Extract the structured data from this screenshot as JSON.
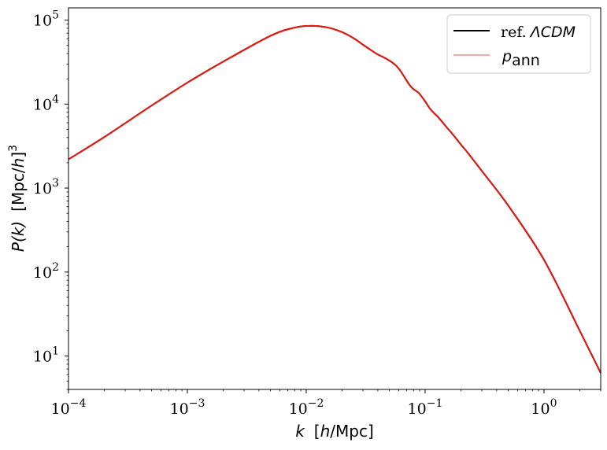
{
  "chart_data": {
    "type": "line",
    "title": "",
    "xlabel": {
      "var": "k",
      "unit": "[h/Mpc]",
      "unit_pre": "[",
      "unit_h": "h",
      "unit_post": "/Mpc]"
    },
    "ylabel": {
      "var": "P(k)",
      "unit_pre": "[Mpc/",
      "unit_h": "h",
      "unit_post": "]",
      "unit_exp": "3"
    },
    "xscale": "log",
    "yscale": "log",
    "xlim": [
      0.0001,
      3.0
    ],
    "ylim": [
      4.0,
      140000
    ],
    "grid": false,
    "legend_position": "top-right",
    "x_ticks": [
      {
        "value": 0.0001,
        "base": "10",
        "exp": "−4"
      },
      {
        "value": 0.001,
        "base": "10",
        "exp": "−3"
      },
      {
        "value": 0.01,
        "base": "10",
        "exp": "−2"
      },
      {
        "value": 0.1,
        "base": "10",
        "exp": "−1"
      },
      {
        "value": 1,
        "base": "10",
        "exp": "0"
      }
    ],
    "y_ticks": [
      {
        "value": 10,
        "base": "10",
        "exp": "1"
      },
      {
        "value": 100,
        "base": "10",
        "exp": "2"
      },
      {
        "value": 1000,
        "base": "10",
        "exp": "3"
      },
      {
        "value": 10000,
        "base": "10",
        "exp": "4"
      },
      {
        "value": 100000,
        "base": "10",
        "exp": "5"
      }
    ],
    "series": [
      {
        "name": "ref. ΛCDM",
        "name_prefix": "ref.",
        "name_math": "ΛCDM",
        "color": "#000000",
        "x": [
          0.0001,
          0.0002,
          0.0005,
          0.001,
          0.002,
          0.005,
          0.008,
          0.011,
          0.015,
          0.02,
          0.025,
          0.03,
          0.035,
          0.04,
          0.045,
          0.05,
          0.055,
          0.06,
          0.065,
          0.07,
          0.075,
          0.08,
          0.085,
          0.09,
          0.1,
          0.11,
          0.12,
          0.13,
          0.15,
          0.17,
          0.2,
          0.23,
          0.3,
          0.5,
          1,
          2,
          3
        ],
        "y": [
          2200,
          4050,
          9600,
          18000,
          32000,
          65000,
          81500,
          85500,
          82000,
          72000,
          61000,
          51000,
          44000,
          39000,
          36000,
          33000,
          30000,
          26500,
          22500,
          19000,
          16500,
          15000,
          14200,
          13200,
          10800,
          8800,
          7700,
          6900,
          5400,
          4400,
          3300,
          2600,
          1600,
          620,
          140,
          20,
          6.3
        ]
      },
      {
        "name": "p_ann",
        "name_main": "p",
        "name_sub": "ann",
        "color": "#e8160f",
        "legend_color": "#f4aaa5",
        "x": [
          0.0001,
          0.0002,
          0.0005,
          0.001,
          0.002,
          0.005,
          0.008,
          0.011,
          0.015,
          0.02,
          0.025,
          0.03,
          0.035,
          0.04,
          0.045,
          0.05,
          0.055,
          0.06,
          0.065,
          0.07,
          0.075,
          0.08,
          0.085,
          0.09,
          0.1,
          0.11,
          0.12,
          0.13,
          0.15,
          0.17,
          0.2,
          0.23,
          0.3,
          0.5,
          1,
          2,
          3
        ],
        "y": [
          2200,
          4050,
          9600,
          18000,
          32000,
          65000,
          81500,
          85500,
          82000,
          72000,
          61000,
          51000,
          44000,
          39000,
          36000,
          33000,
          30000,
          26500,
          22500,
          19000,
          16500,
          15000,
          14200,
          13200,
          10800,
          8800,
          7700,
          6900,
          5400,
          4400,
          3300,
          2600,
          1600,
          620,
          140,
          20,
          6.3
        ]
      }
    ]
  }
}
